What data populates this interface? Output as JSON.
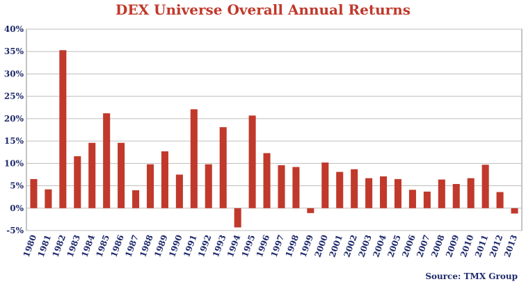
{
  "chart_data": {
    "type": "bar",
    "title": "DEX Universe Overall Annual Returns",
    "source": "Source: TMX Group",
    "xlabel": "",
    "ylabel": "",
    "ylim": [
      -5,
      40
    ],
    "y_ticks": [
      -5,
      0,
      5,
      10,
      15,
      20,
      25,
      30,
      35,
      40
    ],
    "y_tick_labels": [
      "-5%",
      "0%",
      "5%",
      "10%",
      "15%",
      "20%",
      "25%",
      "30%",
      "35%",
      "40%"
    ],
    "grid": true,
    "bar_color": "#C0392B",
    "axis_label_color": "#1F2A6B",
    "categories": [
      "1980",
      "1981",
      "1982",
      "1983",
      "1984",
      "1985",
      "1986",
      "1987",
      "1988",
      "1989",
      "1990",
      "1991",
      "1992",
      "1993",
      "1994",
      "1995",
      "1996",
      "1997",
      "1998",
      "1999",
      "2000",
      "2001",
      "2002",
      "2003",
      "2004",
      "2005",
      "2006",
      "2007",
      "2008",
      "2009",
      "2010",
      "2011",
      "2012",
      "2013"
    ],
    "values": [
      6.5,
      4.2,
      35.3,
      11.6,
      14.6,
      21.2,
      14.6,
      4.0,
      9.8,
      12.7,
      7.5,
      22.1,
      9.8,
      18.1,
      -4.3,
      20.7,
      12.3,
      9.6,
      9.2,
      -1.1,
      10.2,
      8.1,
      8.7,
      6.7,
      7.1,
      6.5,
      4.1,
      3.7,
      6.4,
      5.4,
      6.7,
      9.7,
      3.6,
      -1.2
    ]
  }
}
